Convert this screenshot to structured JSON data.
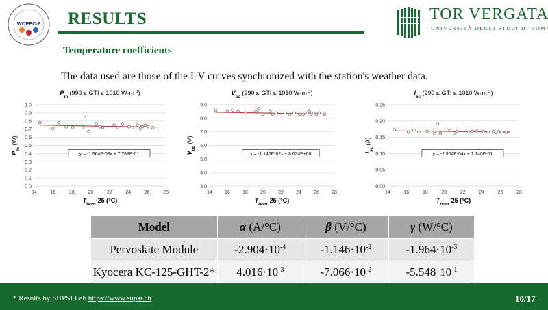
{
  "header": {
    "title": "RESULTS",
    "logo_left_text": "WCPEC-8",
    "logo_right_name": "TOR VERGATA",
    "logo_right_sub": "UNIVERSITÀ DEGLI STUDI DI ROMA"
  },
  "section": {
    "subtitle": "Temperature coefficients",
    "intro": "The data used are those of the I-V curves synchronized with the station's weather data."
  },
  "chart_data": [
    {
      "type": "scatter",
      "title_var": "P",
      "title_sub": "m",
      "title_range": " (990 ≤ GTI ≤ 1010 W·m",
      "title_exp": "-2",
      "title_end": ")",
      "ylabel_var": "P",
      "ylabel_sub": "m",
      "ylabel_unit": " (W)",
      "xlabel_var": "T",
      "xlabel_sub": "bom",
      "xlabel_unit": "-25 (°C)",
      "xlim": [
        14,
        28
      ],
      "ylim": [
        0.0,
        1.0
      ],
      "xticks": [
        "14",
        "16",
        "18",
        "20",
        "22",
        "24",
        "26",
        "28"
      ],
      "yticks": [
        "0.0",
        "0.1",
        "0.2",
        "0.3",
        "0.4",
        "0.5",
        "0.6",
        "0.7",
        "0.8",
        "0.9",
        "1.0"
      ],
      "trendline_label": "y = -1.964E-03x  + 7.788E-01",
      "trendline": {
        "slope": -0.001964,
        "intercept": 0.7788
      },
      "x": [
        14.6,
        16.0,
        16.6,
        17.4,
        18.1,
        19.2,
        19.4,
        19.8,
        20.6,
        21.0,
        21.3,
        22.5,
        22.9,
        23.4,
        24.1,
        24.5,
        25.0,
        25.2,
        25.3,
        25.5,
        25.8,
        26.1,
        26.6
      ],
      "y": [
        0.78,
        0.71,
        0.78,
        0.73,
        0.72,
        0.72,
        0.87,
        0.67,
        0.76,
        0.73,
        0.72,
        0.75,
        0.72,
        0.76,
        0.73,
        0.72,
        0.75,
        0.74,
        0.71,
        0.73,
        0.75,
        0.73,
        0.72
      ]
    },
    {
      "type": "scatter",
      "title_var": "V",
      "title_sub": "oc",
      "title_range": " (990 ≤ GTI ≤ 1010 W·m",
      "title_exp": "-2",
      "title_end": ")",
      "ylabel_var": "V",
      "ylabel_sub": "oc",
      "ylabel_unit": " (V)",
      "xlabel_var": "T",
      "xlabel_sub": "bom",
      "xlabel_unit": "-25 (°C)",
      "xlim": [
        14,
        28
      ],
      "ylim": [
        3.0,
        9.0
      ],
      "xticks": [
        "14",
        "16",
        "18",
        "20",
        "22",
        "24",
        "26",
        "28"
      ],
      "yticks": [
        "3.0",
        "4.0",
        "5.0",
        "6.0",
        "7.0",
        "8.0",
        "9.0"
      ],
      "trendline_label": "y = -1.146E-02x  + 8.624E+00",
      "trendline": {
        "slope": -0.01146,
        "intercept": 8.624
      },
      "x": [
        14.7,
        16.0,
        16.6,
        17.2,
        18.0,
        19.2,
        19.5,
        20.0,
        20.8,
        21.1,
        21.5,
        22.5,
        23.0,
        23.5,
        24.1,
        24.5,
        25.0,
        25.2,
        25.4,
        25.7,
        26.0,
        26.3,
        26.9
      ],
      "y": [
        8.6,
        8.5,
        8.6,
        8.5,
        8.4,
        8.5,
        8.7,
        8.3,
        8.5,
        8.3,
        8.4,
        8.4,
        8.3,
        8.4,
        8.3,
        8.3,
        8.4,
        8.5,
        8.3,
        8.4,
        8.3,
        8.4,
        8.3
      ]
    },
    {
      "type": "scatter",
      "title_var": "I",
      "title_sub": "sc",
      "title_range": " (990 ≤ GTI ≤ 1010 W·m",
      "title_exp": "-2",
      "title_end": ")",
      "ylabel_var": "I",
      "ylabel_sub": "sc",
      "ylabel_unit": " (A)",
      "xlabel_var": "T",
      "xlabel_sub": "bom",
      "xlabel_unit": "-25 (°C)",
      "xlim": [
        14,
        28
      ],
      "ylim": [
        0.0,
        0.25
      ],
      "xticks": [
        "14",
        "16",
        "18",
        "20",
        "22",
        "24",
        "26",
        "28"
      ],
      "yticks": [
        "0.00",
        "0.05",
        "0.10",
        "0.15",
        "0.20",
        "0.25"
      ],
      "trendline_label": "y = -2.904E-04x  + 1.740E-01",
      "trendline": {
        "slope": -0.0002904,
        "intercept": 0.174
      },
      "x": [
        14.7,
        16.2,
        16.8,
        17.3,
        18.2,
        19.0,
        19.3,
        19.6,
        20.6,
        21.1,
        21.4,
        22.6,
        23.0,
        23.5,
        24.2,
        24.7,
        25.0,
        25.3,
        25.5,
        25.8,
        26.2,
        26.6
      ],
      "y": [
        0.173,
        0.165,
        0.172,
        0.166,
        0.168,
        0.161,
        0.192,
        0.162,
        0.17,
        0.163,
        0.168,
        0.166,
        0.168,
        0.169,
        0.167,
        0.166,
        0.166,
        0.168,
        0.165,
        0.167,
        0.166,
        0.165
      ]
    }
  ],
  "table": {
    "headers": [
      {
        "sym": "",
        "unit": "Model"
      },
      {
        "sym": "α",
        "unit": " (A/°C)"
      },
      {
        "sym": "β",
        "unit": " (V/°C)"
      },
      {
        "sym": "γ",
        "unit": " (W/°C)"
      }
    ],
    "rows": [
      {
        "model": "Pervoskite Module",
        "values": [
          {
            "mant": "-2.904·10",
            "exp": "-4"
          },
          {
            "mant": "-1.146·10",
            "exp": "-2"
          },
          {
            "mant": "-1.964·10",
            "exp": "-3"
          }
        ]
      },
      {
        "model": "Kyocera KC-125-GHT-2*",
        "values": [
          {
            "mant": "4.016·10",
            "exp": "-3"
          },
          {
            "mant": "-7.066·10",
            "exp": "-2"
          },
          {
            "mant": "-5.548·10",
            "exp": "-1"
          }
        ]
      }
    ]
  },
  "footer": {
    "note": "*  Results by SUPSI Lab ",
    "link": "https://www.supsi.ch",
    "page": "10/17"
  },
  "colors": {
    "brand_green": "#17692f",
    "trendline": "#c0392b",
    "gridline": "#d9d9d9",
    "header_gray": "#a6a6a6"
  }
}
